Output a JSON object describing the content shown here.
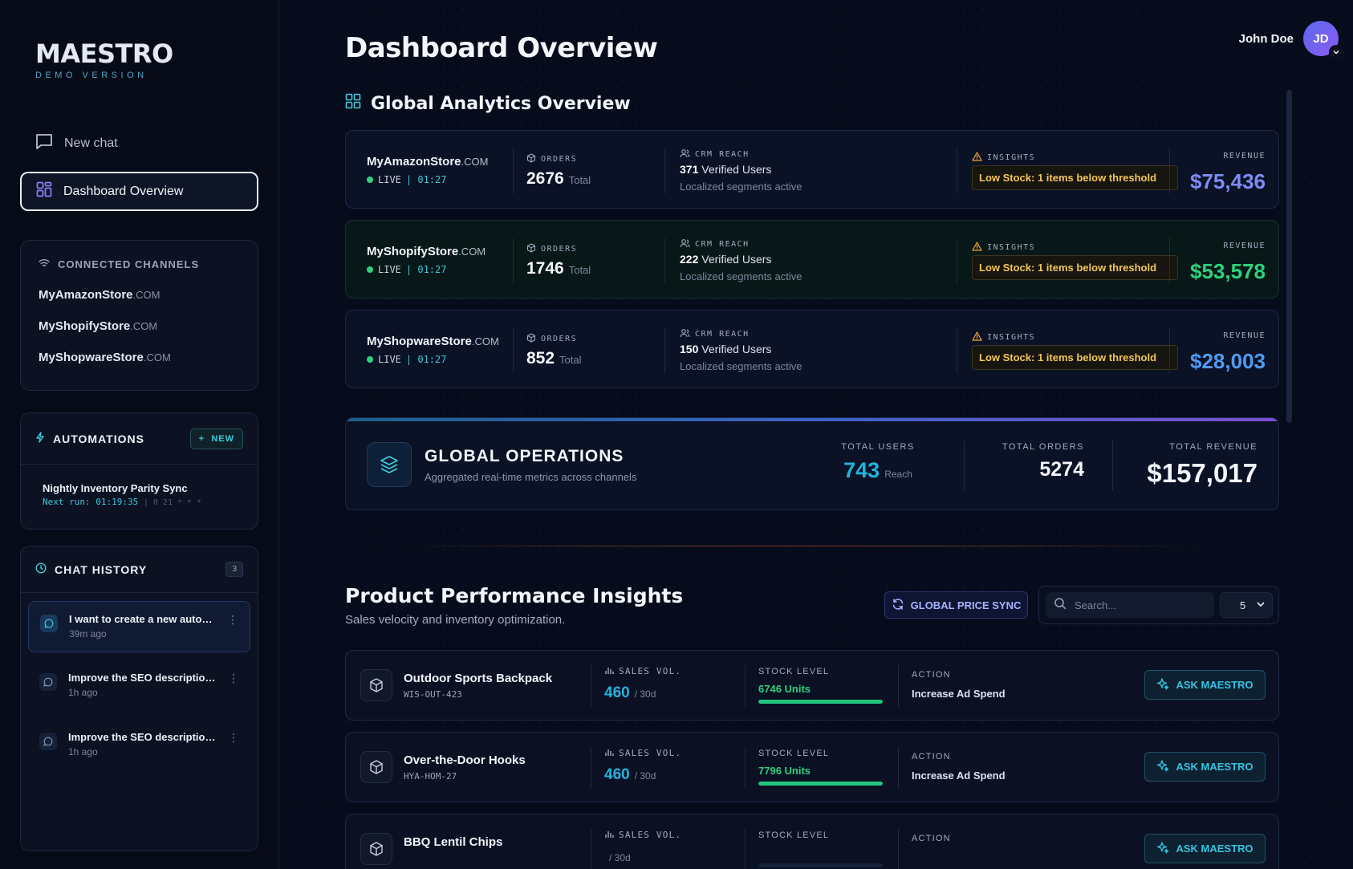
{
  "sidebar": {
    "brand": "MAESTRO",
    "brand_sub": "DEMO VERSION",
    "new_chat": "New chat",
    "active_nav": "Dashboard Overview",
    "channels": {
      "title": "CONNECTED CHANNELS",
      "items": [
        {
          "name": "MyAmazonStore",
          "domain": ".COM"
        },
        {
          "name": "MyShopifyStore",
          "domain": ".COM"
        },
        {
          "name": "MyShopwareStore",
          "domain": ".COM"
        }
      ]
    },
    "automations": {
      "title": "AUTOMATIONS",
      "new_label": "NEW",
      "item_name": "Nightly Inventory Parity Sync",
      "next_run": "Next run: 01:19:35",
      "cron": "| 0 21 * * *"
    },
    "history": {
      "title": "CHAT HISTORY",
      "count": "3",
      "items": [
        {
          "title": "I want to create a new automation",
          "time": "39m ago"
        },
        {
          "title": "Improve the SEO description of product",
          "time": "1h ago"
        },
        {
          "title": "Improve the SEO description of product",
          "time": "1h ago"
        }
      ]
    }
  },
  "header": {
    "title": "Dashboard Overview",
    "user_name": "John Doe",
    "initials": "JD"
  },
  "analytics": {
    "title": "Global Analytics Overview",
    "labels": {
      "orders": "ORDERS",
      "crm": "CRM REACH",
      "insights": "INSIGHTS",
      "revenue": "REVENUE",
      "total": "Total",
      "verified": "Verified Users",
      "segments": "Localized segments active",
      "live": "LIVE",
      "live_time": "| 01:27"
    },
    "stores": [
      {
        "name": "MyAmazonStore",
        "domain": ".COM",
        "orders": "2676",
        "users": "371",
        "insight": "Low Stock: 1 items below threshold",
        "revenue": "$75,436",
        "revenue_color": "#7f8cf5"
      },
      {
        "name": "MyShopifyStore",
        "domain": ".COM",
        "orders": "1746",
        "users": "222",
        "insight": "Low Stock: 1 items below threshold",
        "revenue": "$53,578",
        "revenue_color": "#2fd17c"
      },
      {
        "name": "MyShopwareStore",
        "domain": ".COM",
        "orders": "852",
        "users": "150",
        "insight": "Low Stock: 1 items below threshold",
        "revenue": "$28,003",
        "revenue_color": "#4f9cf2"
      }
    ]
  },
  "operations": {
    "title": "GLOBAL OPERATIONS",
    "subtitle": "Aggregated real-time metrics across channels",
    "total_users_label": "TOTAL USERS",
    "total_users": "743",
    "reach": "Reach",
    "total_orders_label": "TOTAL ORDERS",
    "total_orders": "5274",
    "total_revenue_label": "TOTAL REVENUE",
    "total_revenue": "$157,017"
  },
  "products": {
    "title": "Product Performance Insights",
    "subtitle": "Sales velocity and inventory optimization.",
    "sync_label": "GLOBAL PRICE SYNC",
    "search_placeholder": "Search...",
    "per_page": "5",
    "labels": {
      "sales": "SALES VOL.",
      "period": "/ 30d",
      "stock": "STOCK LEVEL",
      "action": "ACTION",
      "ask": "ASK MAESTRO"
    },
    "items": [
      {
        "name": "Outdoor Sports Backpack",
        "sku": "WIS-OUT-423",
        "sales": "460",
        "stock": "6746 Units",
        "stock_fill": 1.0,
        "action": "Increase Ad Spend"
      },
      {
        "name": "Over-the-Door Hooks",
        "sku": "HYA-HOM-27",
        "sales": "460",
        "stock": "7796 Units",
        "stock_fill": 1.0,
        "action": "Increase Ad Spend"
      },
      {
        "name": "BBQ Lentil Chips",
        "sku": "",
        "sales": "",
        "stock": "",
        "stock_fill": 0,
        "action": ""
      }
    ]
  }
}
